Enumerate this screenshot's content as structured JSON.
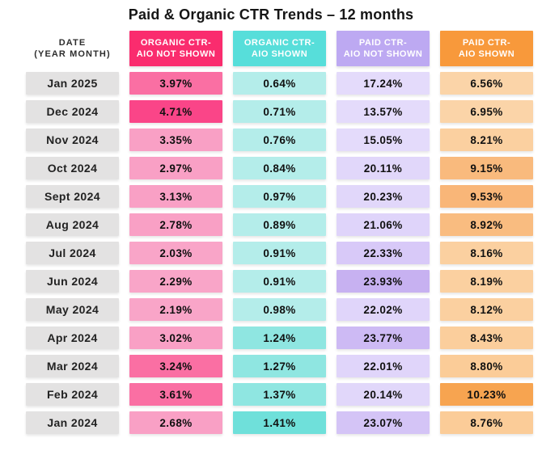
{
  "title": "Paid & Organic CTR Trends – 12 months",
  "table": {
    "date_header": {
      "line1": "DATE",
      "line2": "(YEAR MONTH)"
    },
    "columns": [
      {
        "line1": "ORGANIC CTR-",
        "line2": "AIO NOT SHOWN",
        "color": "#FA2C6E"
      },
      {
        "line1": "ORGANIC CTR-",
        "line2": "AIO SHOWN",
        "color": "#57DEDA"
      },
      {
        "line1": "PAID CTR-",
        "line2": "AIO NOT SHOWN",
        "color": "#BDA9F2"
      },
      {
        "line1": "PAID CTR-",
        "line2": "AIO SHOWN",
        "color": "#F8993B"
      }
    ],
    "rows": [
      {
        "date": "Jan 2025",
        "cells": [
          {
            "value": "3.97%",
            "bg": "#FA6FA3"
          },
          {
            "value": "0.64%",
            "bg": "#B4EDEA"
          },
          {
            "value": "17.24%",
            "bg": "#E4DBFB"
          },
          {
            "value": "6.56%",
            "bg": "#FBD4A8"
          }
        ]
      },
      {
        "date": "Dec 2024",
        "cells": [
          {
            "value": "4.71%",
            "bg": "#FA4588"
          },
          {
            "value": "0.71%",
            "bg": "#B4EDEA"
          },
          {
            "value": "13.57%",
            "bg": "#E4DBFB"
          },
          {
            "value": "6.95%",
            "bg": "#FBD4A8"
          }
        ]
      },
      {
        "date": "Nov 2024",
        "cells": [
          {
            "value": "3.35%",
            "bg": "#F9A0C5"
          },
          {
            "value": "0.76%",
            "bg": "#B4EDEA"
          },
          {
            "value": "15.05%",
            "bg": "#E4DBFB"
          },
          {
            "value": "8.21%",
            "bg": "#FBD0A0"
          }
        ]
      },
      {
        "date": "Oct 2024",
        "cells": [
          {
            "value": "2.97%",
            "bg": "#F9A0C5"
          },
          {
            "value": "0.84%",
            "bg": "#B4EDEA"
          },
          {
            "value": "20.11%",
            "bg": "#E1D7FA"
          },
          {
            "value": "9.15%",
            "bg": "#F9BA7D"
          }
        ]
      },
      {
        "date": "Sept 2024",
        "cells": [
          {
            "value": "3.13%",
            "bg": "#F9A0C5"
          },
          {
            "value": "0.97%",
            "bg": "#B4EDEA"
          },
          {
            "value": "20.23%",
            "bg": "#E1D7FA"
          },
          {
            "value": "9.53%",
            "bg": "#F9B678"
          }
        ]
      },
      {
        "date": "Aug 2024",
        "cells": [
          {
            "value": "2.78%",
            "bg": "#F9A0C5"
          },
          {
            "value": "0.89%",
            "bg": "#B4EDEA"
          },
          {
            "value": "21.06%",
            "bg": "#DFD4FA"
          },
          {
            "value": "8.92%",
            "bg": "#F9BC80"
          }
        ]
      },
      {
        "date": "Jul 2024",
        "cells": [
          {
            "value": "2.03%",
            "bg": "#F9A5C8"
          },
          {
            "value": "0.91%",
            "bg": "#B4EDEA"
          },
          {
            "value": "22.33%",
            "bg": "#D8C9F8"
          },
          {
            "value": "8.16%",
            "bg": "#FBD0A0"
          }
        ]
      },
      {
        "date": "Jun 2024",
        "cells": [
          {
            "value": "2.29%",
            "bg": "#F9A5C8"
          },
          {
            "value": "0.91%",
            "bg": "#B4EDEA"
          },
          {
            "value": "23.93%",
            "bg": "#C7B1F1"
          },
          {
            "value": "8.19%",
            "bg": "#FBD0A0"
          }
        ]
      },
      {
        "date": "May 2024",
        "cells": [
          {
            "value": "2.19%",
            "bg": "#F9A5C8"
          },
          {
            "value": "0.98%",
            "bg": "#B4EDEA"
          },
          {
            "value": "22.02%",
            "bg": "#E0D5FA"
          },
          {
            "value": "8.12%",
            "bg": "#FBD0A0"
          }
        ]
      },
      {
        "date": "Apr 2024",
        "cells": [
          {
            "value": "3.02%",
            "bg": "#F9A0C5"
          },
          {
            "value": "1.24%",
            "bg": "#8FE6E1"
          },
          {
            "value": "23.77%",
            "bg": "#CDBAF4"
          },
          {
            "value": "8.43%",
            "bg": "#FBCE9C"
          }
        ]
      },
      {
        "date": "Mar 2024",
        "cells": [
          {
            "value": "3.24%",
            "bg": "#FA6FA3"
          },
          {
            "value": "1.27%",
            "bg": "#8FE6E1"
          },
          {
            "value": "22.01%",
            "bg": "#E0D5FA"
          },
          {
            "value": "8.80%",
            "bg": "#FBCC98"
          }
        ]
      },
      {
        "date": "Feb 2024",
        "cells": [
          {
            "value": "3.61%",
            "bg": "#FA6FA3"
          },
          {
            "value": "1.37%",
            "bg": "#8FE6E1"
          },
          {
            "value": "20.14%",
            "bg": "#E1D7FA"
          },
          {
            "value": "10.23%",
            "bg": "#F7A450"
          }
        ]
      },
      {
        "date": "Jan 2024",
        "cells": [
          {
            "value": "2.68%",
            "bg": "#F9A0C5"
          },
          {
            "value": "1.41%",
            "bg": "#6FE0DA"
          },
          {
            "value": "23.07%",
            "bg": "#D4C4F6"
          },
          {
            "value": "8.76%",
            "bg": "#FBCC98"
          }
        ]
      }
    ]
  },
  "chart_data": {
    "type": "table",
    "title": "Paid & Organic CTR Trends – 12 months",
    "unit": "%",
    "categories": [
      "Jan 2025",
      "Dec 2024",
      "Nov 2024",
      "Oct 2024",
      "Sept 2024",
      "Aug 2024",
      "Jul 2024",
      "Jun 2024",
      "May 2024",
      "Apr 2024",
      "Mar 2024",
      "Feb 2024",
      "Jan 2024"
    ],
    "series": [
      {
        "name": "Organic CTR - AIO Not Shown",
        "values": [
          3.97,
          4.71,
          3.35,
          2.97,
          3.13,
          2.78,
          2.03,
          2.29,
          2.19,
          3.02,
          3.24,
          3.61,
          2.68
        ]
      },
      {
        "name": "Organic CTR - AIO Shown",
        "values": [
          0.64,
          0.71,
          0.76,
          0.84,
          0.97,
          0.89,
          0.91,
          0.91,
          0.98,
          1.24,
          1.27,
          1.37,
          1.41
        ]
      },
      {
        "name": "Paid CTR - AIO Not Shown",
        "values": [
          17.24,
          13.57,
          15.05,
          20.11,
          20.23,
          21.06,
          22.33,
          23.93,
          22.02,
          23.77,
          22.01,
          20.14,
          23.07
        ]
      },
      {
        "name": "Paid CTR - AIO Shown",
        "values": [
          6.56,
          6.95,
          8.21,
          9.15,
          9.53,
          8.92,
          8.16,
          8.19,
          8.12,
          8.43,
          8.8,
          10.23,
          8.76
        ]
      }
    ],
    "layout_hints": {
      "heatmap_shading": "darker cell background = higher value within column",
      "legend_position": "none",
      "grid": false
    }
  }
}
